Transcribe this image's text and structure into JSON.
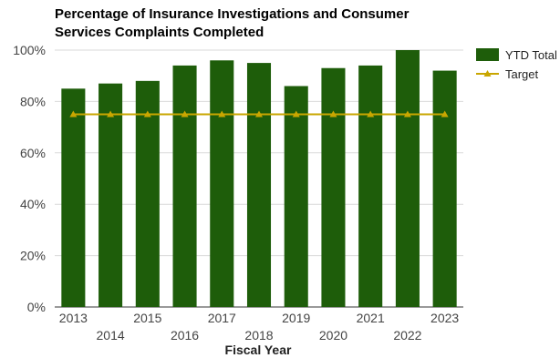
{
  "chart_data": {
    "type": "bar",
    "title_lines": [
      "Percentage of Insurance Investigations and Consumer",
      "Services Complaints Completed"
    ],
    "xlabel": "Fiscal Year",
    "ylabel": "",
    "categories": [
      "2013",
      "2014",
      "2015",
      "2016",
      "2017",
      "2018",
      "2019",
      "2020",
      "2021",
      "2022",
      "2023"
    ],
    "series": [
      {
        "name": "YTD Total",
        "type": "bar",
        "color": "#1e5d0a",
        "values": [
          85,
          87,
          88,
          94,
          96,
          95,
          86,
          93,
          94,
          100,
          92
        ]
      },
      {
        "name": "Target",
        "type": "line",
        "color": "#c9a600",
        "values": [
          75,
          75,
          75,
          75,
          75,
          75,
          75,
          75,
          75,
          75,
          75
        ]
      }
    ],
    "ylim": [
      0,
      100
    ],
    "yticks": [
      0,
      20,
      40,
      60,
      80,
      100
    ],
    "ytick_labels": [
      "0%",
      "20%",
      "40%",
      "60%",
      "80%",
      "100%"
    ],
    "grid": true,
    "legend_position": "right"
  }
}
